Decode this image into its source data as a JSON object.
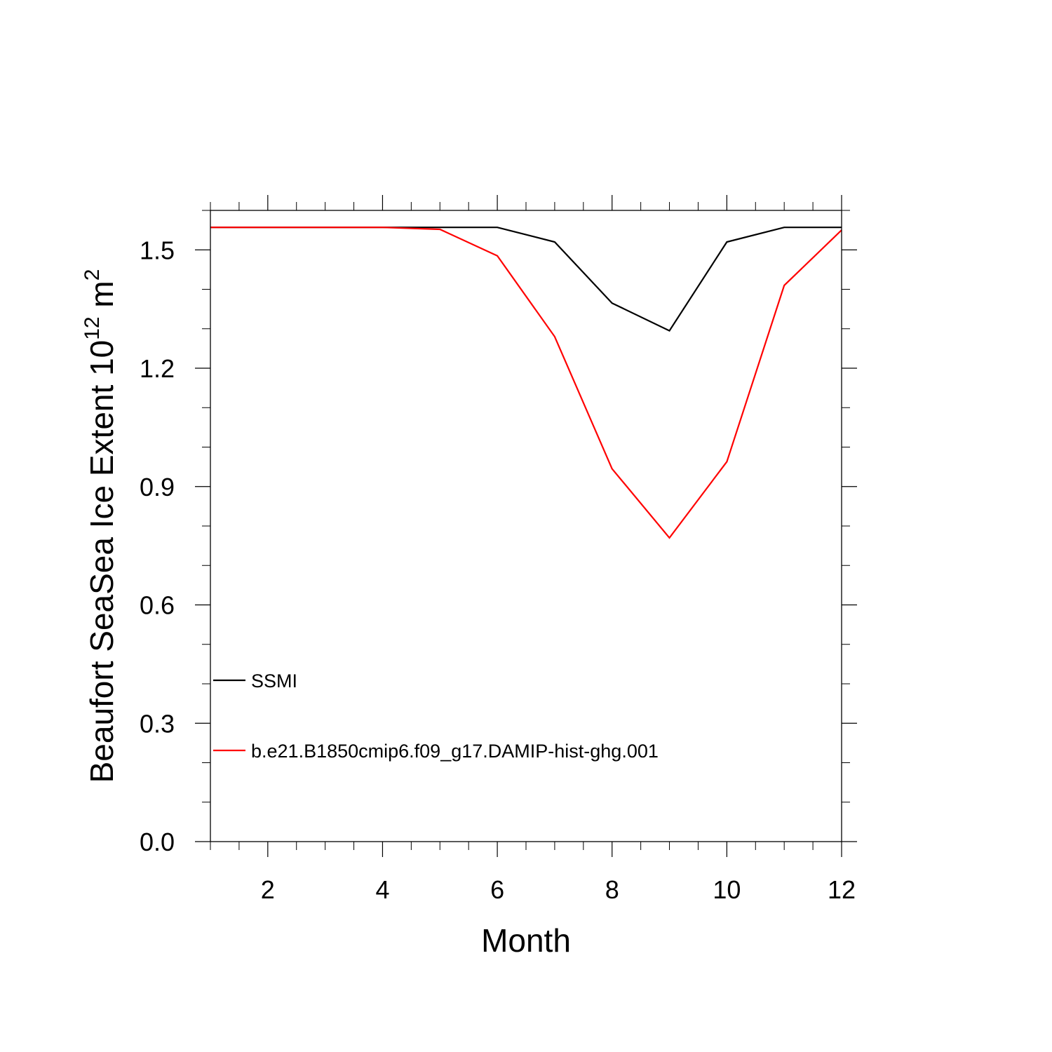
{
  "chart_data": {
    "type": "line",
    "title": "",
    "xlabel": "Month",
    "ylabel": {
      "main": "Beaufort SeaSea Ice Extent 10",
      "sup1": "12",
      "mid": " m",
      "sup2": "2"
    },
    "xlim": [
      1,
      12
    ],
    "ylim": [
      0,
      1.6
    ],
    "xticks": [
      2,
      4,
      6,
      8,
      10,
      12
    ],
    "xtick_labels": [
      "2",
      "4",
      "6",
      "8",
      "10",
      "12"
    ],
    "yticks": [
      0,
      0.3,
      0.6,
      0.9,
      1.2,
      1.5
    ],
    "ytick_labels": [
      "0.0",
      "0.3",
      "0.6",
      "0.9",
      "1.2",
      "1.5"
    ],
    "x": [
      1,
      2,
      3,
      4,
      5,
      6,
      7,
      8,
      9,
      10,
      11,
      12
    ],
    "series": [
      {
        "name": "SSMI",
        "color": "#000000",
        "values": [
          1.557,
          1.557,
          1.557,
          1.557,
          1.557,
          1.557,
          1.52,
          1.365,
          1.295,
          1.52,
          1.557,
          1.557
        ]
      },
      {
        "name": "b.e21.B1850cmip6.f09_g17.DAMIP-hist-ghg.001",
        "color": "#ff0000",
        "values": [
          1.557,
          1.557,
          1.557,
          1.557,
          1.552,
          1.485,
          1.28,
          0.945,
          0.77,
          0.963,
          1.41,
          1.55
        ]
      }
    ],
    "grid": false,
    "legend_position": "bottom-left, inside"
  }
}
